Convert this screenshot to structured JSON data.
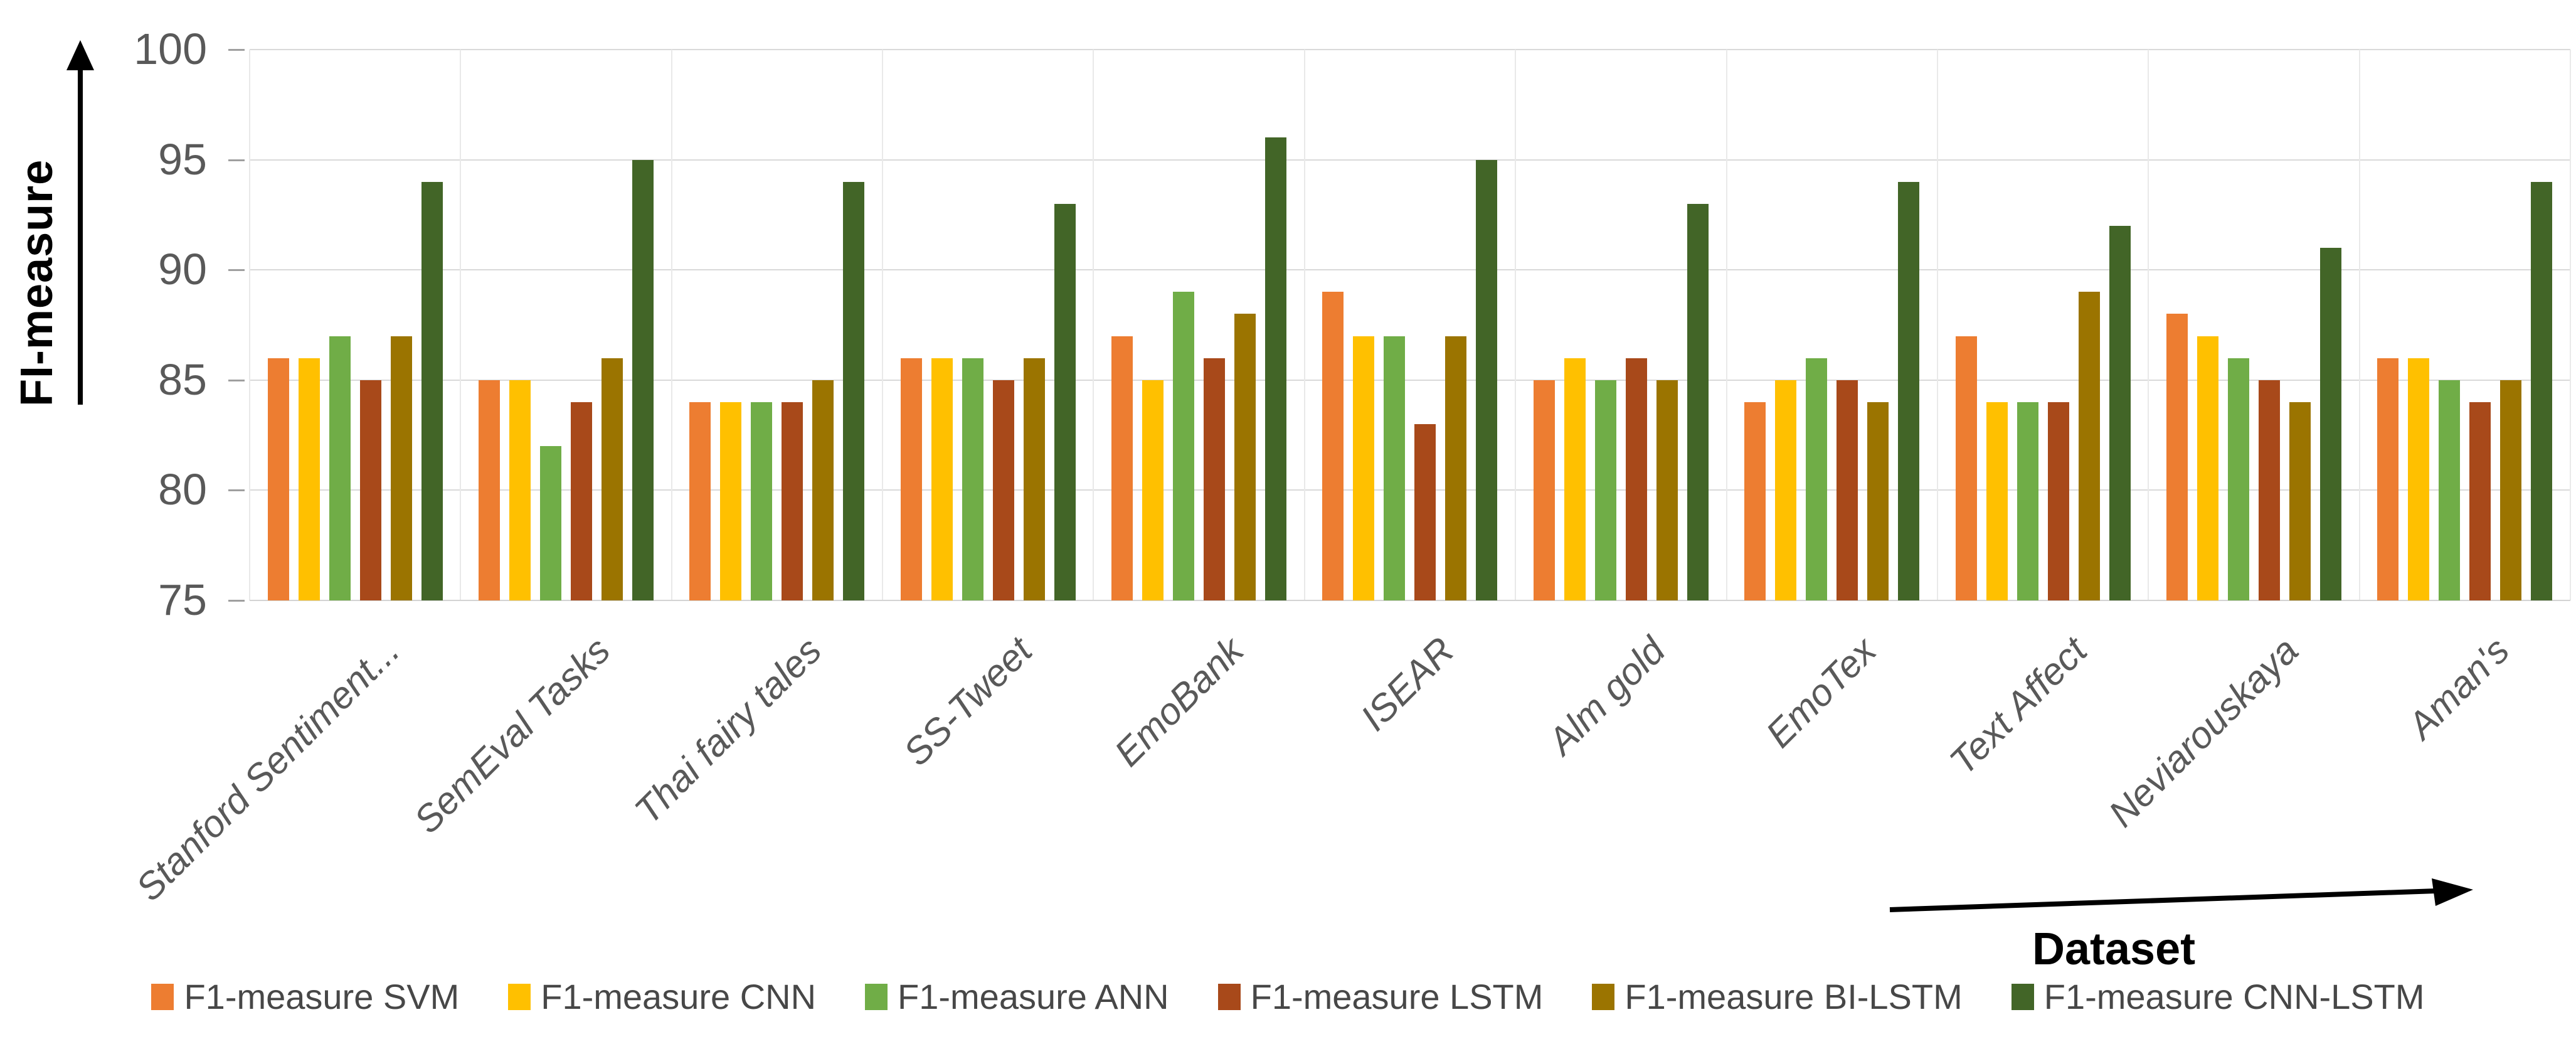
{
  "chart_data": {
    "type": "bar",
    "title": "",
    "ylabel": "FI-measure",
    "xlabel": "Dataset",
    "ylim": [
      75,
      100
    ],
    "y_ticks": [
      75,
      80,
      85,
      90,
      95,
      100
    ],
    "grid": true,
    "legend_position": "bottom",
    "categories": [
      "Stanford Sentiment...",
      "SemEval Tasks",
      "Thai fairy tales",
      "SS-Tweet",
      "EmoBank",
      "ISEAR",
      "Alm gold",
      "EmoTex",
      "Text Affect",
      "Neviarouskaya",
      "Aman's"
    ],
    "series": [
      {
        "name": "F1-measure SVM",
        "color": "#ED7D31",
        "values": [
          86,
          85,
          84,
          86,
          87,
          89,
          85,
          84,
          87,
          88,
          86
        ]
      },
      {
        "name": "F1-measure CNN",
        "color": "#FFC000",
        "values": [
          86,
          85,
          84,
          86,
          85,
          87,
          86,
          85,
          84,
          87,
          86
        ]
      },
      {
        "name": "F1-measure ANN",
        "color": "#70AD47",
        "values": [
          87,
          82,
          84,
          86,
          89,
          87,
          85,
          86,
          84,
          86,
          85
        ]
      },
      {
        "name": "F1-measure LSTM",
        "color": "#A8491A",
        "values": [
          85,
          84,
          84,
          85,
          86,
          83,
          86,
          85,
          84,
          85,
          84
        ]
      },
      {
        "name": "F1-measure BI-LSTM",
        "color": "#9B7400",
        "values": [
          87,
          86,
          85,
          86,
          88,
          87,
          85,
          84,
          89,
          84,
          85
        ]
      },
      {
        "name": "F1-measure CNN-LSTM",
        "color": "#426527",
        "values": [
          94,
          95,
          94,
          93,
          96,
          95,
          93,
          94,
          92,
          91,
          94
        ]
      }
    ]
  },
  "axis_style": {
    "tick_color": "#595959",
    "gridline_color": "#D9D9D9"
  }
}
